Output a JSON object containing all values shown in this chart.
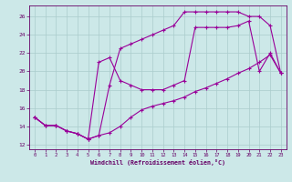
{
  "xlabel": "Windchill (Refroidissement éolien,°C)",
  "bg_color": "#cce8e8",
  "line_color": "#990099",
  "grid_color": "#aacccc",
  "text_color": "#660066",
  "xlim": [
    -0.5,
    23.5
  ],
  "ylim": [
    11.5,
    27.2
  ],
  "xticks": [
    0,
    1,
    2,
    3,
    4,
    5,
    6,
    7,
    8,
    9,
    10,
    11,
    12,
    13,
    14,
    15,
    16,
    17,
    18,
    19,
    20,
    21,
    22,
    23
  ],
  "yticks": [
    12,
    14,
    16,
    18,
    20,
    22,
    24,
    26
  ],
  "series": [
    {
      "x": [
        0,
        1,
        2,
        3,
        4,
        5,
        6,
        7,
        8,
        9,
        10,
        11,
        12,
        13,
        14,
        15,
        16,
        17,
        18,
        19,
        20,
        21,
        22,
        23
      ],
      "y": [
        15,
        14.1,
        14.1,
        13.5,
        13.2,
        12.6,
        13.0,
        13.3,
        14.0,
        15.0,
        15.8,
        16.2,
        16.5,
        16.8,
        17.2,
        17.8,
        18.2,
        18.7,
        19.2,
        19.8,
        20.3,
        21.0,
        21.8,
        19.8
      ]
    },
    {
      "x": [
        0,
        1,
        2,
        3,
        4,
        5,
        6,
        7,
        8,
        9,
        10,
        11,
        12,
        13,
        14,
        15,
        16,
        17,
        18,
        19,
        20,
        21,
        22,
        23
      ],
      "y": [
        15,
        14.1,
        14.1,
        13.5,
        13.2,
        12.6,
        13.0,
        18.5,
        22.5,
        23.0,
        23.5,
        24.0,
        24.5,
        25.0,
        26.5,
        26.5,
        26.5,
        26.5,
        26.5,
        26.5,
        26.0,
        26.0,
        25.0,
        19.8
      ]
    },
    {
      "x": [
        0,
        1,
        2,
        3,
        4,
        5,
        6,
        7,
        8,
        9,
        10,
        11,
        12,
        13,
        14,
        15,
        16,
        17,
        18,
        19,
        20,
        21,
        22,
        23
      ],
      "y": [
        15,
        14.1,
        14.1,
        13.5,
        13.2,
        12.6,
        21.0,
        21.5,
        19.0,
        18.5,
        18.0,
        18.0,
        18.0,
        18.5,
        19.0,
        24.8,
        24.8,
        24.8,
        24.8,
        25.0,
        25.5,
        20.0,
        22.0,
        19.8
      ]
    }
  ]
}
